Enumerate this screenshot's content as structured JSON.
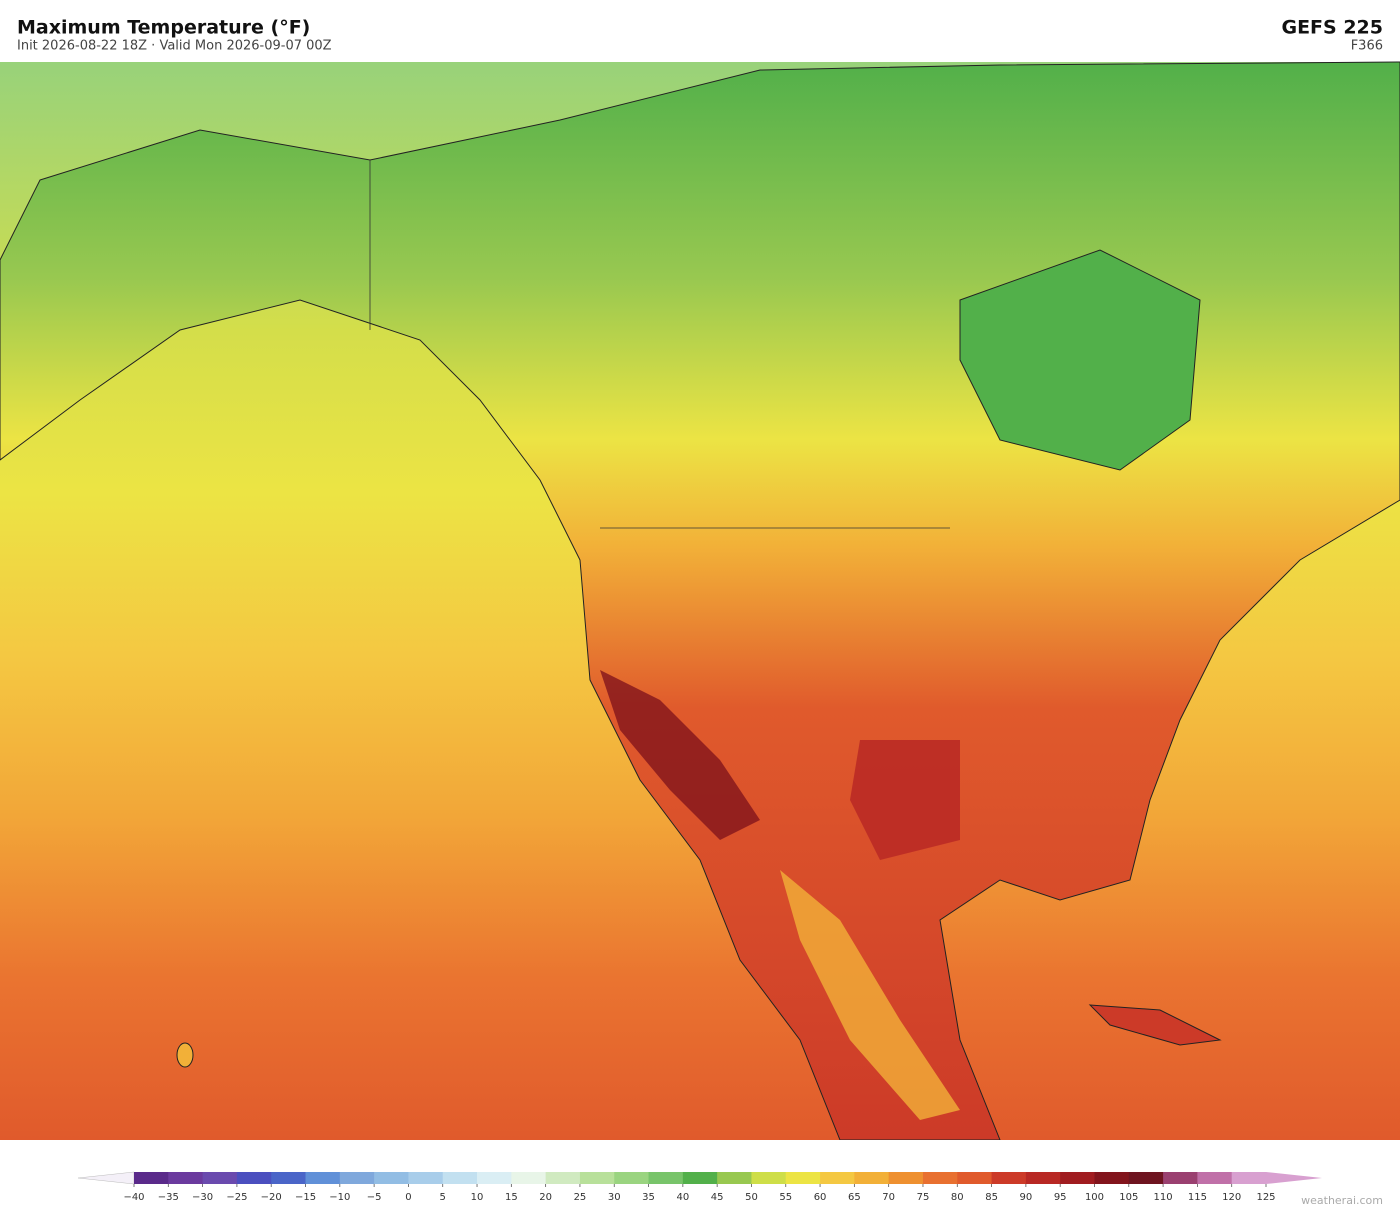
{
  "header": {
    "title": "Maximum Temperature  (°F)",
    "subtitle": "Init 2026-08-22 18Z   ·   Valid Mon 2026-09-07 00Z",
    "model": "GEFS  225",
    "forecast_hour": "F366"
  },
  "colorbar": {
    "ticks": [
      {
        "value": -40,
        "label": "−40"
      },
      {
        "value": -35,
        "label": "−35"
      },
      {
        "value": -30,
        "label": "−30"
      },
      {
        "value": -25,
        "label": "−25"
      },
      {
        "value": -20,
        "label": "−20"
      },
      {
        "value": -15,
        "label": "−15"
      },
      {
        "value": -10,
        "label": "−10"
      },
      {
        "value": -5,
        "label": "−5"
      },
      0,
      5,
      10,
      15,
      20,
      25,
      30,
      35,
      40,
      45,
      50,
      55,
      60,
      65,
      70,
      75,
      80,
      85,
      90,
      95,
      100,
      105,
      110,
      115,
      120,
      125
    ],
    "colors": [
      "#5a2a8a",
      "#6b3a9e",
      "#6a4aae",
      "#4b4fbf",
      "#4a65c8",
      "#6090d8",
      "#7fa8dc",
      "#92bde4",
      "#a8cdea",
      "#c2e0f0",
      "#daeef4",
      "#e8f5e8",
      "#d0eac0",
      "#b8e09a",
      "#9ad480",
      "#78c46a",
      "#52b04a",
      "#98c850",
      "#cede48",
      "#ece444",
      "#f4c842",
      "#f2b038",
      "#ee9030",
      "#e87030",
      "#e05a2c",
      "#cc3a28",
      "#b82824",
      "#a01c20",
      "#82141c",
      "#6e1420",
      "#9a4070",
      "#c070a8",
      "#d8a0d0"
    ],
    "under_color": "#f4f0f8",
    "over_color": "#d8a0d0"
  },
  "watermark": "weatherai.com"
}
